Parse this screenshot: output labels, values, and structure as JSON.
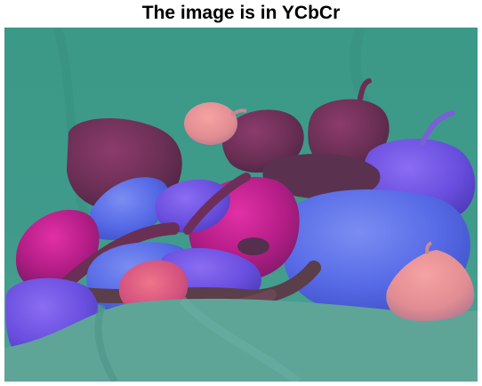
{
  "figure": {
    "title": "The image is in YCbCr"
  },
  "image": {
    "subject": "peppers-and-garlic-still-life",
    "colors": {
      "background_cloth": "#3e9c8a",
      "foreground_cloth": "#5fa59a",
      "dark_red_pepper": "#6a2f54",
      "magenta_pepper": "#c01f8d",
      "purple_pepper": "#6b4be0",
      "blue_pepper": "#5569e6",
      "garlic": "#e88a8f",
      "chili_brown": "#5a3e4a"
    }
  }
}
